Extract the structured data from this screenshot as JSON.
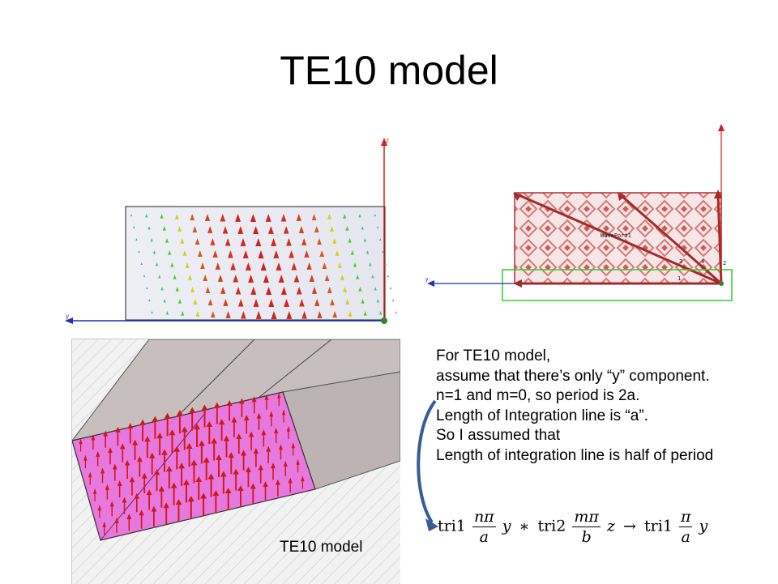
{
  "slide": {
    "title": "TE10 model"
  },
  "figure_top_left": {
    "axis_z": "z",
    "axis_y": "y"
  },
  "figure_top_right": {
    "axis_z": "z",
    "axis_y": "y",
    "port_label": "WavePort1",
    "marker_1": "1",
    "marker_2": "2",
    "marker_3": "3",
    "marker_4": "4"
  },
  "figure_3d": {
    "caption": "TE10 model"
  },
  "explanation": {
    "lines": [
      "For TE10 model,",
      "assume that there’s only “y” component.",
      "n=1 and m=0, so period is 2a.",
      "Length of Integration line is “a”.",
      "So I assumed that",
      "Length of integration line is half of period"
    ]
  },
  "formula": {
    "t1": "tri1",
    "f1_num": "nπ",
    "f1_den": "a",
    "v1": "y",
    "op1": "∗",
    "t2": "tri2",
    "f2_num": "mπ",
    "f2_den": "b",
    "v2": "z",
    "arrow": "→",
    "t3": "tri1",
    "f3_num": "π",
    "f3_den": "a",
    "v3": "y"
  },
  "colors": {
    "field_red": "#cc1a1a",
    "axis_red": "#d21f1f",
    "axis_blue": "#1f2fbf",
    "port_pink": "#e05bd8",
    "selection_green": "#33cc33",
    "curve_blue": "#3a5c94"
  }
}
